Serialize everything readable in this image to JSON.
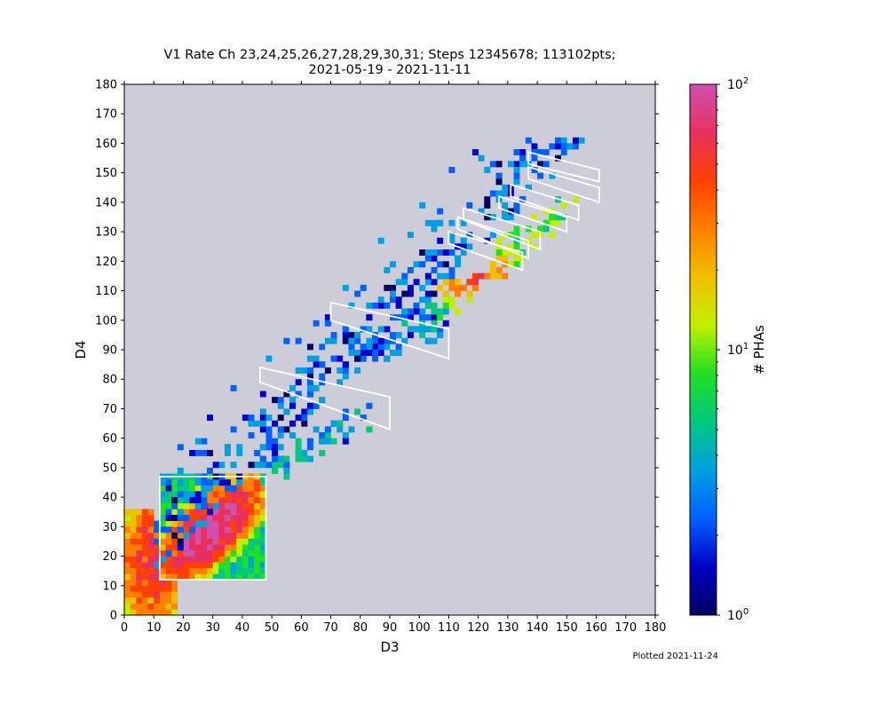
{
  "chart_data": {
    "type": "heatmap",
    "title_line1": "V1 Rate Ch 23,24,25,26,27,28,29,30,31; Steps 12345678; 113102pts;",
    "title_line2": "2021-05-19 - 2021-11-11",
    "xlabel": "D3",
    "ylabel": "D4",
    "xlim": [
      0,
      180
    ],
    "ylim": [
      0,
      180
    ],
    "xticks": [
      0,
      10,
      20,
      30,
      40,
      50,
      60,
      70,
      80,
      90,
      100,
      110,
      120,
      130,
      140,
      150,
      160,
      170,
      180
    ],
    "yticks": [
      0,
      10,
      20,
      30,
      40,
      50,
      60,
      70,
      80,
      90,
      100,
      110,
      120,
      130,
      140,
      150,
      160,
      170,
      180
    ],
    "background_color": "#cdcdda",
    "colorbar": {
      "label": "# PHAs",
      "scale": "log",
      "range": [
        1,
        100
      ],
      "ticks": [
        {
          "base": "10",
          "exp": "0",
          "value": 1
        },
        {
          "base": "10",
          "exp": "1",
          "value": 10
        },
        {
          "base": "10",
          "exp": "2",
          "value": 100
        }
      ],
      "colors": [
        "#000060",
        "#0000c8",
        "#0060ff",
        "#00a0e0",
        "#00c880",
        "#20e020",
        "#c0f000",
        "#f0c000",
        "#ff8000",
        "#ff4000",
        "#e83060",
        "#d050b0"
      ]
    },
    "density_regions": [
      {
        "name": "low-corner",
        "x": [
          0,
          18
        ],
        "y": [
          0,
          36
        ],
        "peak": 60
      },
      {
        "name": "main-blob",
        "x": [
          12,
          47
        ],
        "y": [
          12,
          47
        ],
        "peak": 100,
        "center": [
          28,
          28
        ]
      },
      {
        "name": "diagonal-track-1",
        "from": [
          47,
          47
        ],
        "to": [
          80,
          68
        ],
        "peak": 6
      },
      {
        "name": "diagonal-track-2",
        "from": [
          80,
          88
        ],
        "to": [
          110,
          100
        ],
        "peak": 5
      },
      {
        "name": "diagonal-track-3",
        "from": [
          100,
          100
        ],
        "to": [
          135,
          125
        ],
        "peak": 45,
        "center": [
          120,
          115
        ]
      },
      {
        "name": "diagonal-track-4",
        "from": [
          130,
          125
        ],
        "to": [
          152,
          140
        ],
        "peak": 15
      }
    ],
    "boxes": [
      [
        [
          12,
          12
        ],
        [
          48,
          12
        ],
        [
          48,
          47
        ],
        [
          12,
          47
        ]
      ],
      [
        [
          46,
          84
        ],
        [
          90,
          74
        ],
        [
          90,
          63
        ],
        [
          46,
          79
        ]
      ],
      [
        [
          70,
          106
        ],
        [
          110,
          97
        ],
        [
          110,
          87
        ],
        [
          70,
          100
        ]
      ],
      [
        [
          110,
          130
        ],
        [
          135,
          123
        ],
        [
          135,
          117
        ],
        [
          110,
          126
        ]
      ],
      [
        [
          113,
          135
        ],
        [
          137,
          127
        ],
        [
          137,
          121
        ],
        [
          113,
          131
        ]
      ],
      [
        [
          115,
          138
        ],
        [
          141,
          130
        ],
        [
          141,
          124
        ],
        [
          115,
          134
        ]
      ],
      [
        [
          127,
          142
        ],
        [
          150,
          135
        ],
        [
          150,
          130
        ],
        [
          127,
          138
        ]
      ],
      [
        [
          131,
          146
        ],
        [
          154,
          139
        ],
        [
          154,
          134
        ],
        [
          131,
          142
        ]
      ],
      [
        [
          137,
          152
        ],
        [
          161,
          145
        ],
        [
          161,
          140
        ],
        [
          137,
          148
        ]
      ],
      [
        [
          137,
          157
        ],
        [
          161,
          151
        ],
        [
          161,
          147
        ],
        [
          137,
          153
        ]
      ]
    ]
  },
  "footer": {
    "plotted_text": "Plotted 2021-11-24"
  }
}
